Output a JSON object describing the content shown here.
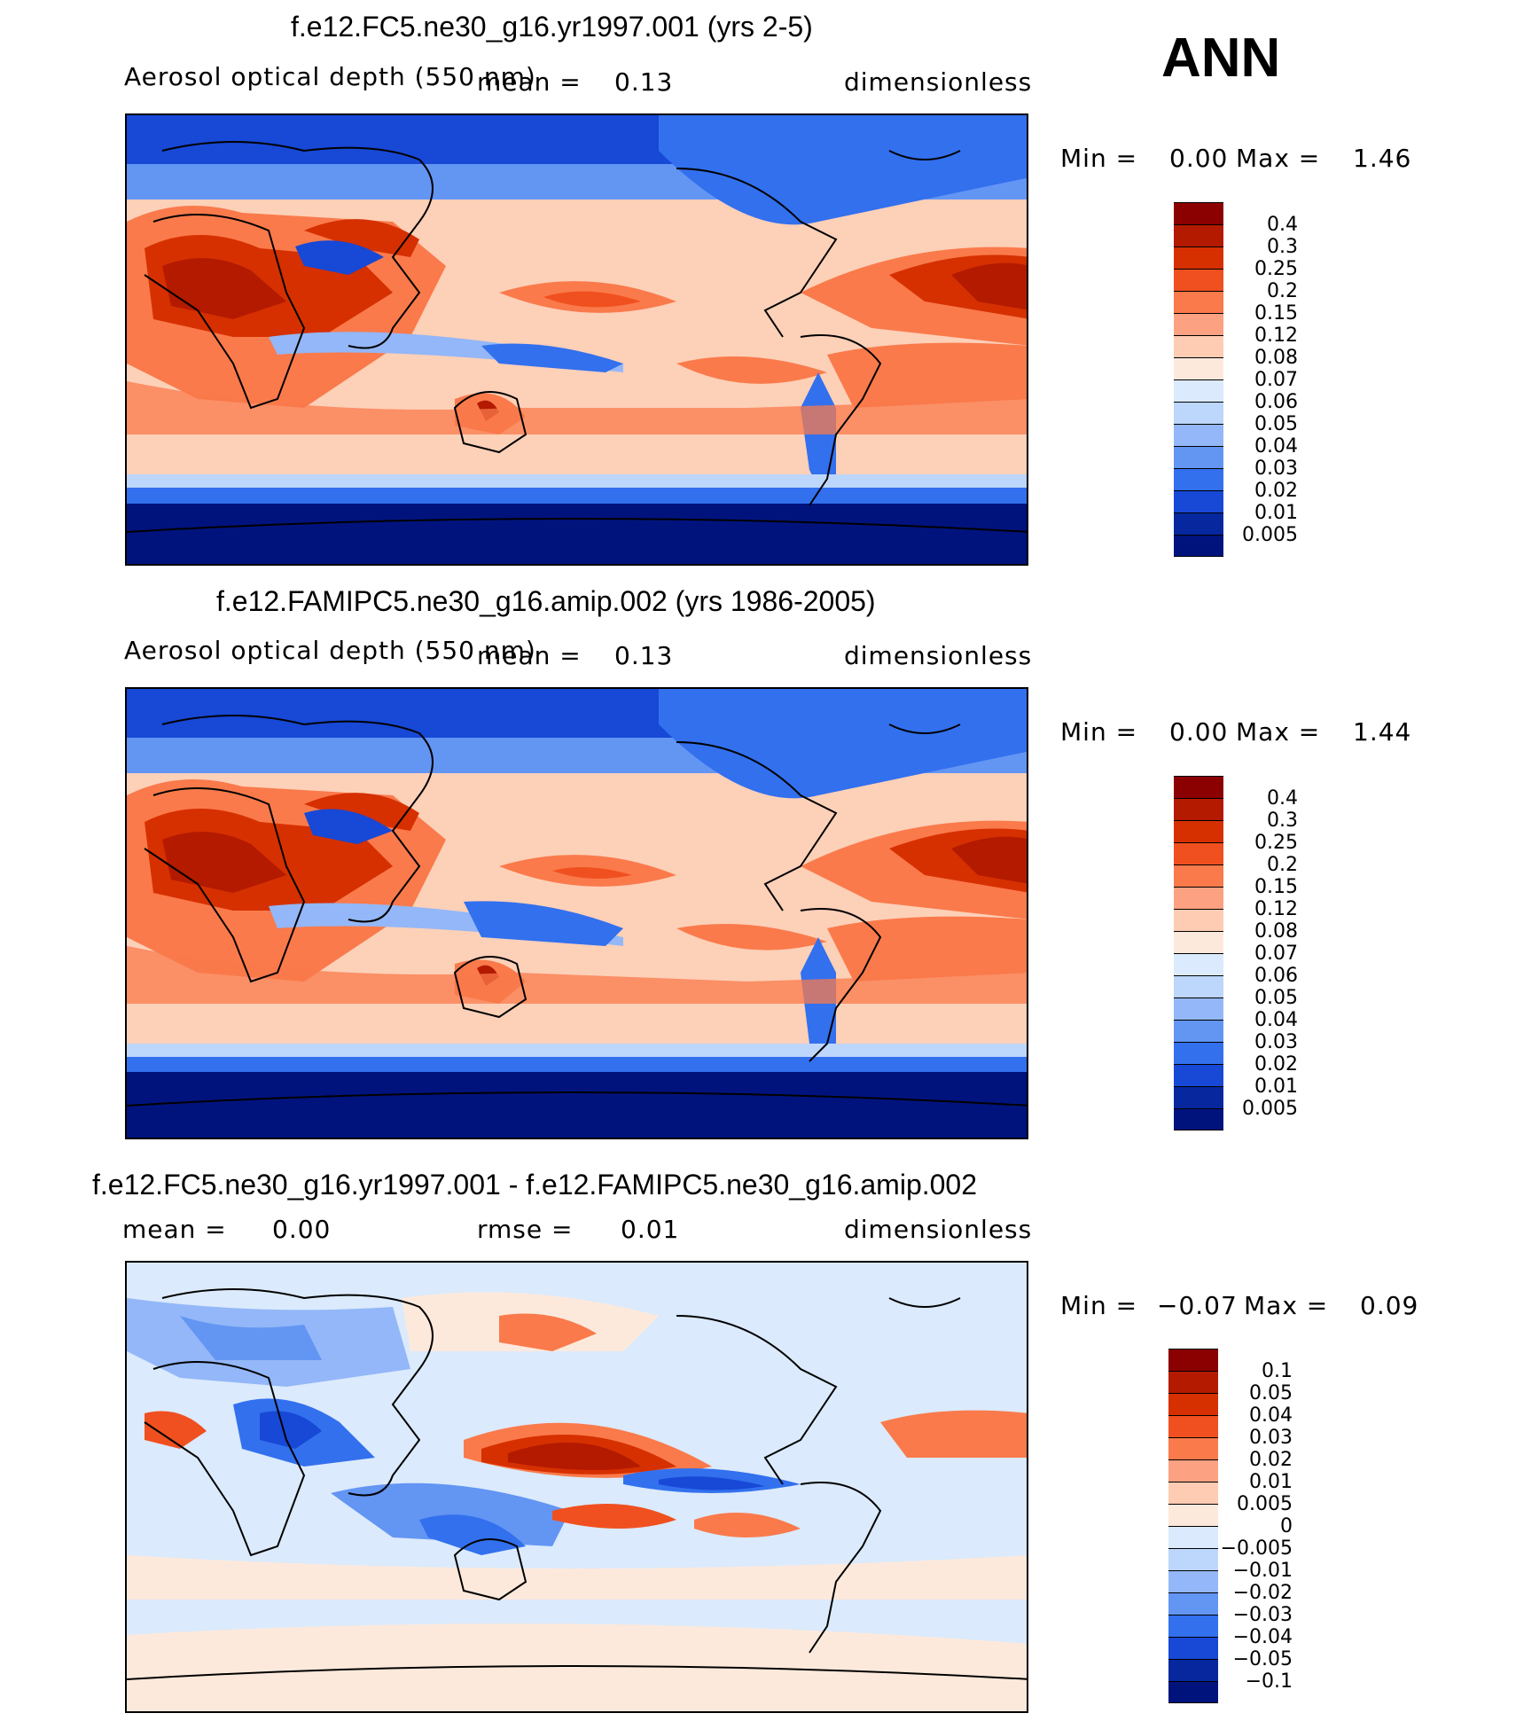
{
  "season": "ANN",
  "panels": [
    {
      "id": "p1",
      "title": "f.e12.FC5.ne30_g16.yr1997.001 (yrs 2-5)",
      "variable": "Aerosol optical depth (550 nm)",
      "stat1_label": "mean =",
      "stat1_value": "0.13",
      "stat2_label": "",
      "stat2_value": "",
      "units": "dimensionless",
      "min_label": "Min =",
      "min_value": "0.00",
      "max_label": "Max =",
      "max_value": "1.46",
      "kind": "abs"
    },
    {
      "id": "p2",
      "title": "f.e12.FAMIPC5.ne30_g16.amip.002 (yrs 1986-2005)",
      "variable": "Aerosol optical depth (550 nm)",
      "stat1_label": "mean =",
      "stat1_value": "0.13",
      "stat2_label": "",
      "stat2_value": "",
      "units": "dimensionless",
      "min_label": "Min =",
      "min_value": "0.00",
      "max_label": "Max =",
      "max_value": "1.44",
      "kind": "abs"
    },
    {
      "id": "p3",
      "title": "f.e12.FC5.ne30_g16.yr1997.001 - f.e12.FAMIPC5.ne30_g16.amip.002",
      "variable": "",
      "stat1_label": "mean =",
      "stat1_value": "0.00",
      "stat2_label": "rmse =",
      "stat2_value": "0.01",
      "units": "dimensionless",
      "min_label": "Min =",
      "min_value": "−0.07",
      "max_label": "Max =",
      "max_value": "0.09",
      "kind": "diff"
    }
  ],
  "colorbars": {
    "abs": {
      "labels": [
        "0.4",
        "0.3",
        "0.25",
        "0.2",
        "0.15",
        "0.12",
        "0.08",
        "0.07",
        "0.06",
        "0.05",
        "0.04",
        "0.03",
        "0.02",
        "0.01",
        "0.005"
      ],
      "colors": [
        "#8b0000",
        "#b31a00",
        "#d63000",
        "#f0501f",
        "#fa7a4b",
        "#fca282",
        "#fdccb3",
        "#fde9dc",
        "#dbeafc",
        "#bdd6fb",
        "#93b7f8",
        "#6395f3",
        "#3270ee",
        "#1748d6",
        "#06279e",
        "#00137d"
      ]
    },
    "diff": {
      "labels": [
        "0.1",
        "0.05",
        "0.04",
        "0.03",
        "0.02",
        "0.01",
        "0.005",
        "0",
        "−0.005",
        "−0.01",
        "−0.02",
        "−0.03",
        "−0.04",
        "−0.05",
        "−0.1"
      ],
      "colors": [
        "#8b0000",
        "#b31a00",
        "#d63000",
        "#f0501f",
        "#fa7a4b",
        "#fca282",
        "#fdccb3",
        "#fde9dc",
        "#dbeafc",
        "#bdd6fb",
        "#93b7f8",
        "#6395f3",
        "#3270ee",
        "#1748d6",
        "#06279e",
        "#00137d"
      ]
    }
  }
}
